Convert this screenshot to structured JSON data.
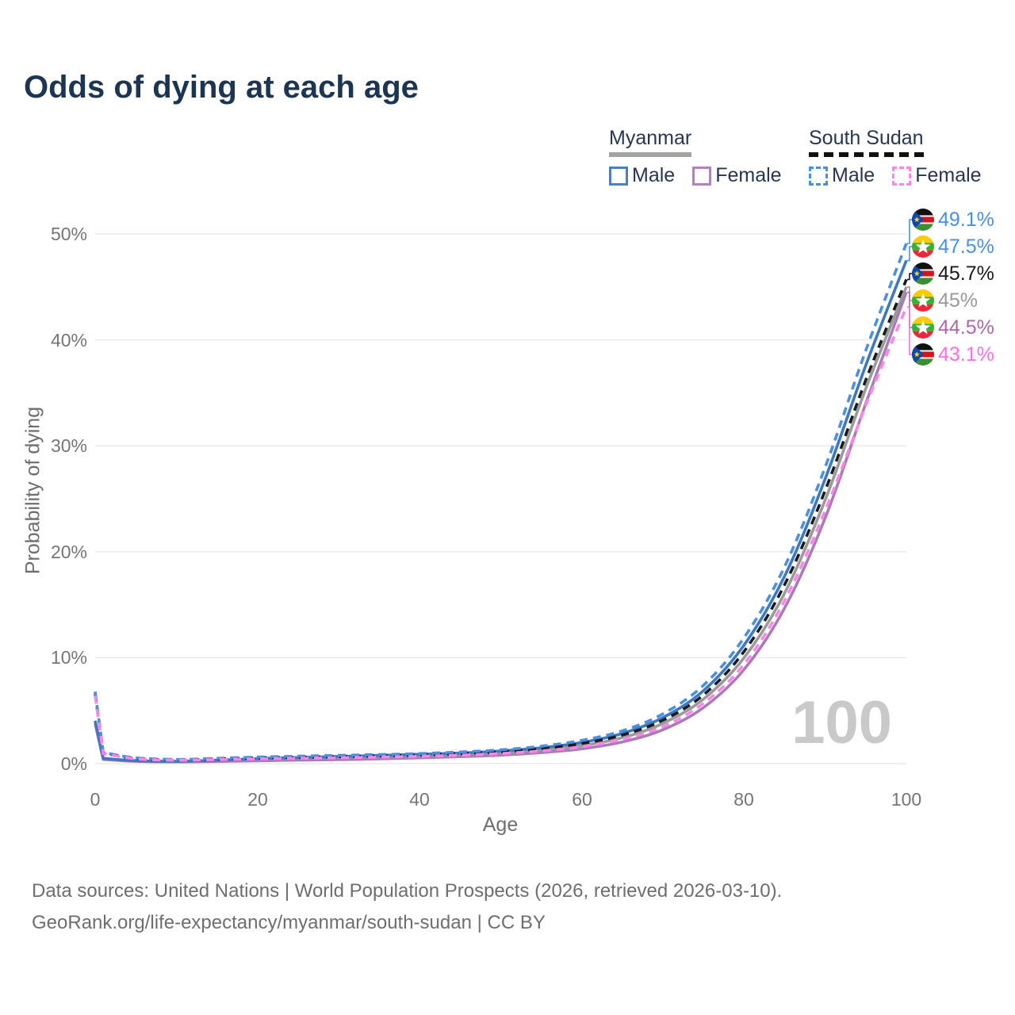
{
  "title": "Odds of dying at each age",
  "legend": {
    "groups": [
      {
        "label": "Myanmar",
        "style": "solid"
      },
      {
        "label": "South Sudan",
        "style": "dashed"
      }
    ],
    "male_label": "Male",
    "female_label": "Female"
  },
  "chart_data": {
    "type": "line",
    "title": "Odds of dying at each age",
    "xlabel": "Age",
    "ylabel": "Probability of dying",
    "xlim": [
      0,
      100
    ],
    "ylim": [
      0,
      50
    ],
    "grid": "horizontal",
    "legend_position": "top-right",
    "xticks": [
      "0",
      "20",
      "40",
      "60",
      "80",
      "100"
    ],
    "yticks": [
      "0%",
      "10%",
      "20%",
      "30%",
      "40%",
      "50%"
    ],
    "x": [
      0,
      1,
      5,
      10,
      15,
      20,
      25,
      30,
      35,
      40,
      45,
      50,
      55,
      60,
      65,
      70,
      75,
      80,
      85,
      90,
      95,
      100
    ],
    "series": [
      {
        "id": "mm_total",
        "name": "Myanmar Total",
        "country": "Myanmar",
        "color": "#9a9a9a",
        "dash": false,
        "values": [
          3.9,
          0.45,
          0.25,
          0.2,
          0.27,
          0.38,
          0.46,
          0.53,
          0.62,
          0.72,
          0.84,
          1.0,
          1.28,
          1.7,
          2.45,
          3.8,
          6.1,
          10.0,
          16.1,
          24.9,
          35.4,
          45.0
        ]
      },
      {
        "id": "mm_female",
        "name": "Myanmar Female",
        "country": "Myanmar",
        "color": "#a87cb8",
        "dash": false,
        "values": [
          3.75,
          0.4,
          0.22,
          0.17,
          0.21,
          0.27,
          0.33,
          0.38,
          0.45,
          0.55,
          0.66,
          0.8,
          1.04,
          1.4,
          2.05,
          3.2,
          5.3,
          8.9,
          14.7,
          23.2,
          34.0,
          44.5
        ]
      },
      {
        "id": "mm_male",
        "name": "Myanmar Male",
        "country": "Myanmar",
        "color": "#3f77c1",
        "dash": false,
        "values": [
          4.05,
          0.5,
          0.28,
          0.22,
          0.32,
          0.48,
          0.58,
          0.68,
          0.78,
          0.88,
          1.0,
          1.2,
          1.5,
          2.0,
          2.85,
          4.35,
          6.9,
          11.2,
          17.7,
          26.9,
          37.6,
          47.5
        ]
      },
      {
        "id": "ss_total",
        "name": "South Sudan Total",
        "country": "South Sudan",
        "color": "#1a1a1a",
        "dash": true,
        "values": [
          6.6,
          1.0,
          0.5,
          0.36,
          0.44,
          0.54,
          0.6,
          0.66,
          0.73,
          0.82,
          0.95,
          1.12,
          1.42,
          1.9,
          2.7,
          4.1,
          6.5,
          10.6,
          16.9,
          25.8,
          36.2,
          45.7
        ]
      },
      {
        "id": "ss_male",
        "name": "South Sudan Male",
        "country": "South Sudan",
        "color": "#4a90e2",
        "dash": true,
        "values": [
          6.8,
          1.05,
          0.55,
          0.4,
          0.5,
          0.62,
          0.7,
          0.78,
          0.85,
          0.95,
          1.1,
          1.3,
          1.65,
          2.2,
          3.1,
          4.7,
          7.4,
          11.9,
          18.6,
          28.0,
          39.0,
          49.1
        ]
      },
      {
        "id": "ss_female",
        "name": "South Sudan Female",
        "country": "South Sudan",
        "color": "#ff85e6",
        "dash": true,
        "values": [
          6.4,
          0.95,
          0.46,
          0.32,
          0.38,
          0.45,
          0.5,
          0.55,
          0.61,
          0.69,
          0.8,
          0.95,
          1.2,
          1.6,
          2.3,
          3.5,
          5.7,
          9.4,
          15.4,
          23.9,
          33.8,
          43.1
        ]
      }
    ]
  },
  "end_labels": [
    {
      "series": "ss_male",
      "value": "49.1%",
      "color": "#4a90e2",
      "flag": "south-sudan"
    },
    {
      "series": "mm_male",
      "value": "47.5%",
      "color": "#4a90e2",
      "flag": "myanmar"
    },
    {
      "series": "ss_total",
      "value": "45.7%",
      "color": "#1a1a1a",
      "flag": "south-sudan"
    },
    {
      "series": "mm_total",
      "value": "45%",
      "color": "#9a9a9a",
      "flag": "myanmar"
    },
    {
      "series": "mm_female",
      "value": "44.5%",
      "color": "#ac68ac",
      "flag": "myanmar"
    },
    {
      "series": "ss_female",
      "value": "43.1%",
      "color": "#ff6ee0",
      "flag": "south-sudan"
    }
  ],
  "watermark": "100",
  "footer": {
    "line1": "Data sources: United Nations | World Population Prospects (2026, retrieved 2026-03-10).",
    "line2": "GeoRank.org/life-expectancy/myanmar/south-sudan | CC BY"
  }
}
